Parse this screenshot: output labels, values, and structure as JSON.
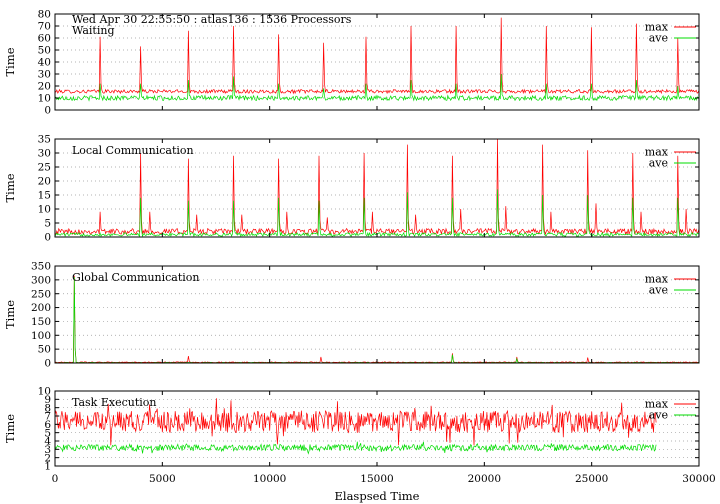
{
  "header": {
    "title": "Wed Apr 30 22:55:50 : atlas136 : 1536 Processors"
  },
  "chart_data": [
    {
      "type": "line",
      "panel_label": "Waiting",
      "ylabel": "Time",
      "xlim": [
        0,
        30000
      ],
      "ylim": [
        0,
        80
      ],
      "yticks": [
        0,
        10,
        20,
        30,
        40,
        50,
        60,
        70,
        80
      ],
      "xticks": [
        0,
        5000,
        10000,
        15000,
        20000,
        25000,
        30000
      ],
      "grid": "horizontal dotted",
      "legend_position": "top-right",
      "series": [
        {
          "name": "max",
          "color": "#ff0000",
          "baseline": [
            14,
            17
          ],
          "spikes": [
            [
              2100,
              61
            ],
            [
              4000,
              53
            ],
            [
              6200,
              66
            ],
            [
              8300,
              70
            ],
            [
              10400,
              63
            ],
            [
              12500,
              56
            ],
            [
              14500,
              61
            ],
            [
              16600,
              70
            ],
            [
              18700,
              70
            ],
            [
              20800,
              77
            ],
            [
              22900,
              70
            ],
            [
              25000,
              69
            ],
            [
              27100,
              72
            ],
            [
              29000,
              60
            ]
          ]
        },
        {
          "name": "ave",
          "color": "#00dd00",
          "baseline": [
            8,
            12
          ],
          "spikes": [
            [
              2100,
              22
            ],
            [
              4000,
              22
            ],
            [
              6200,
              25
            ],
            [
              8300,
              28
            ],
            [
              10400,
              22
            ],
            [
              12500,
              18
            ],
            [
              14500,
              22
            ],
            [
              16600,
              25
            ],
            [
              18700,
              22
            ],
            [
              20800,
              30
            ],
            [
              22900,
              22
            ],
            [
              25000,
              22
            ],
            [
              27100,
              25
            ],
            [
              29000,
              20
            ]
          ]
        }
      ]
    },
    {
      "type": "line",
      "panel_label": "Local Communication",
      "ylabel": "Time",
      "xlim": [
        0,
        30000
      ],
      "ylim": [
        0,
        35
      ],
      "yticks": [
        0,
        5,
        10,
        15,
        20,
        25,
        30,
        35
      ],
      "xticks": [
        0,
        5000,
        10000,
        15000,
        20000,
        25000,
        30000
      ],
      "grid": "horizontal dotted",
      "legend_position": "top-right",
      "series": [
        {
          "name": "max",
          "color": "#ff0000",
          "baseline": [
            1,
            3
          ],
          "spikes": [
            [
              2100,
              9
            ],
            [
              4000,
              30
            ],
            [
              4400,
              9
            ],
            [
              6200,
              28
            ],
            [
              6600,
              8
            ],
            [
              8300,
              29
            ],
            [
              8700,
              8
            ],
            [
              10400,
              28
            ],
            [
              10800,
              9
            ],
            [
              12300,
              29
            ],
            [
              12700,
              7
            ],
            [
              14400,
              30
            ],
            [
              14800,
              9
            ],
            [
              16400,
              33
            ],
            [
              16800,
              8
            ],
            [
              18500,
              29
            ],
            [
              18900,
              10
            ],
            [
              20600,
              35
            ],
            [
              21000,
              11
            ],
            [
              22700,
              33
            ],
            [
              23100,
              9
            ],
            [
              24800,
              31
            ],
            [
              25200,
              12
            ],
            [
              26900,
              30
            ],
            [
              27300,
              9
            ],
            [
              29000,
              29
            ],
            [
              29400,
              10
            ]
          ]
        },
        {
          "name": "ave",
          "color": "#00dd00",
          "baseline": [
            0.3,
            1.5
          ],
          "spikes": [
            [
              4000,
              14
            ],
            [
              6200,
              13
            ],
            [
              8300,
              13
            ],
            [
              10400,
              14
            ],
            [
              12300,
              13
            ],
            [
              14400,
              14
            ],
            [
              16400,
              16
            ],
            [
              18500,
              14
            ],
            [
              20600,
              17
            ],
            [
              22700,
              15
            ],
            [
              24800,
              15
            ],
            [
              26900,
              14
            ],
            [
              29000,
              14
            ]
          ]
        }
      ]
    },
    {
      "type": "line",
      "panel_label": "Global Communication",
      "ylabel": "Time",
      "xlim": [
        0,
        30000
      ],
      "ylim": [
        0,
        350
      ],
      "yticks": [
        0,
        50,
        100,
        150,
        200,
        250,
        300,
        350
      ],
      "xticks": [
        0,
        5000,
        10000,
        15000,
        20000,
        25000,
        30000
      ],
      "grid": "horizontal dotted",
      "legend_position": "top-right",
      "series": [
        {
          "name": "max",
          "color": "#ff0000",
          "baseline": [
            1,
            4
          ],
          "spikes": [
            [
              900,
              315
            ],
            [
              6200,
              25
            ],
            [
              12400,
              22
            ],
            [
              18500,
              35
            ],
            [
              21500,
              22
            ],
            [
              24800,
              20
            ]
          ]
        },
        {
          "name": "ave",
          "color": "#00dd00",
          "baseline": [
            0.5,
            2
          ],
          "spikes": [
            [
              900,
              310
            ],
            [
              18500,
              30
            ],
            [
              21500,
              15
            ]
          ]
        }
      ]
    },
    {
      "type": "line",
      "panel_label": "Task Execution",
      "ylabel": "Time",
      "xlabel": "Elaspsed Time",
      "xlim": [
        0,
        30000
      ],
      "ylim": [
        1,
        10
      ],
      "yticks": [
        1,
        2,
        3,
        4,
        5,
        6,
        7,
        8,
        9,
        10
      ],
      "xticks": [
        0,
        5000,
        10000,
        15000,
        20000,
        25000,
        30000
      ],
      "grid": "horizontal dotted",
      "legend_position": "top-right",
      "series": [
        {
          "name": "max",
          "color": "#ff0000",
          "x_end": 28000,
          "baseline": [
            5.0,
            7.6
          ]
        },
        {
          "name": "ave",
          "color": "#00dd00",
          "x_end": 28000,
          "baseline": [
            2.8,
            3.6
          ]
        }
      ]
    }
  ]
}
